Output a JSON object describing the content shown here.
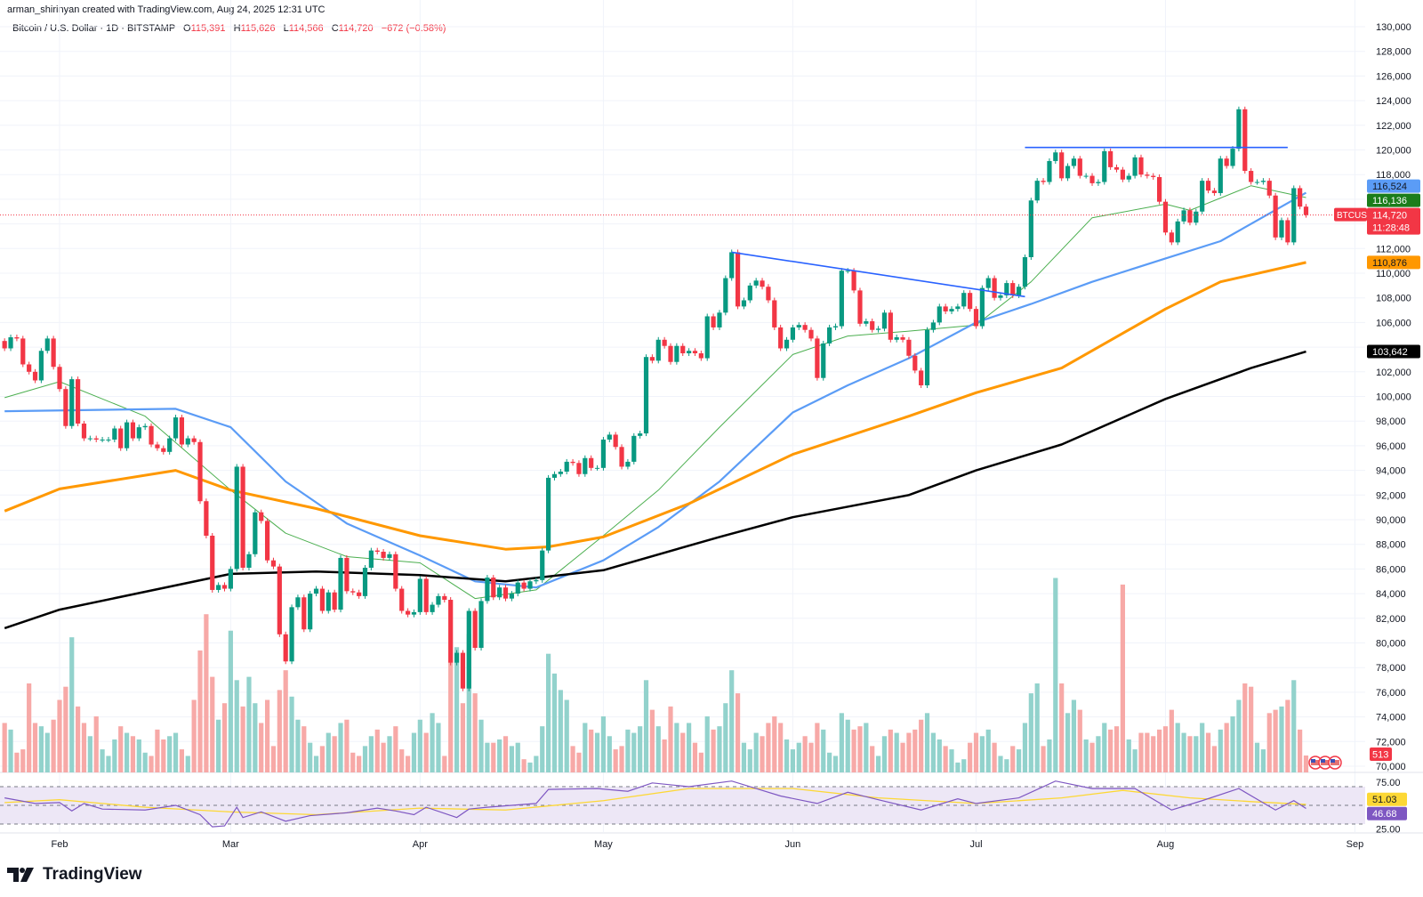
{
  "header": {
    "credit": "arman_shirinyan created with TradingView.com, Aug 24, 2025 12:31 UTC",
    "symbol": "Bitcoin / U.S. Dollar · 1D · BITSTAMP",
    "o_label": "O",
    "o": "115,391",
    "h_label": "H",
    "h": "115,626",
    "l_label": "L",
    "l": "114,566",
    "c_label": "C",
    "c": "114,720",
    "change": "−672 (−0.58%)"
  },
  "branding": {
    "logo_text": "TradingView"
  },
  "colors": {
    "up": "#089981",
    "down": "#f23645",
    "vol_up": "#92d2cc",
    "vol_down": "#f7a9a7",
    "ma_green": "#4caf50",
    "ma_blue": "#5b9cf6",
    "ma_orange": "#ff9800",
    "ma_black": "#000000",
    "trendline": "#2962ff",
    "rsi": "#7e57c2",
    "rsi_ma": "#fdd835",
    "rsi_band": "#ede7f6"
  },
  "chart_data": {
    "type": "candlestick",
    "title": "",
    "symbol_tag": "BTCUSD",
    "period": {
      "from": "2025-01-23",
      "to": "2025-08-24"
    },
    "first_open": 104500,
    "closes": [
      103900,
      104800,
      104700,
      102600,
      102000,
      101300,
      103700,
      104700,
      102400,
      100600,
      97600,
      101400,
      97800,
      96600,
      96600,
      96500,
      96500,
      96500,
      97400,
      95800,
      97900,
      96600,
      97500,
      97600,
      96100,
      95800,
      95500,
      96600,
      98300,
      96100,
      96600,
      96300,
      91500,
      88700,
      84300,
      84700,
      84400,
      86000,
      94300,
      86100,
      87200,
      90600,
      89900,
      86700,
      86200,
      80700,
      78500,
      82900,
      83700,
      81100,
      84000,
      84400,
      82600,
      84100,
      82700,
      86900,
      84200,
      84100,
      83800,
      86100,
      87500,
      87400,
      86900,
      87200,
      84400,
      82600,
      82300,
      82500,
      85200,
      82500,
      83100,
      83800,
      83500,
      78400,
      79200,
      76300,
      82600,
      79600,
      83400,
      85300,
      83700,
      84500,
      83600,
      84000,
      84900,
      84400,
      85000,
      85100,
      87500,
      93400,
      93700,
      93900,
      94700,
      94600,
      93700,
      95000,
      94200,
      94200,
      96500,
      96900,
      95900,
      94300,
      94700,
      96800,
      97000,
      103200,
      102900,
      104600,
      104100,
      102800,
      104100,
      103500,
      103700,
      103500,
      103100,
      106500,
      105600,
      106800,
      109600,
      111700,
      107300,
      107800,
      109000,
      109400,
      108900,
      107800,
      105600,
      103900,
      104600,
      105600,
      105800,
      105400,
      104700,
      101500,
      104300,
      105600,
      105700,
      110200,
      110200,
      108600,
      105900,
      106100,
      105400,
      105500,
      106800,
      104600,
      104800,
      104600,
      103300,
      102100,
      100900,
      105400,
      106000,
      107300,
      106900,
      107100,
      107300,
      108400,
      107100,
      105700,
      108800,
      109600,
      108000,
      108200,
      109200,
      108200,
      108900,
      111300,
      115900,
      117500,
      117400,
      119100,
      119800,
      117700,
      118700,
      119300,
      117900,
      117900,
      117300,
      117400,
      119900,
      118600,
      118400,
      117600,
      117900,
      119400,
      118000,
      117900,
      117800,
      115800,
      113300,
      112500,
      114200,
      115100,
      114100,
      115000,
      117500,
      116700,
      116500,
      119300,
      118700,
      120100,
      123300,
      118300,
      117400,
      117400,
      117500,
      116300,
      112900,
      114300,
      112500,
      116900,
      115400,
      114720
    ],
    "volume": [
      1500,
      1300,
      600,
      700,
      2700,
      1500,
      1400,
      1200,
      1600,
      2200,
      2600,
      4100,
      2000,
      1500,
      1100,
      1700,
      700,
      500,
      1000,
      1400,
      1200,
      1100,
      1000,
      600,
      500,
      1300,
      1000,
      1100,
      1200,
      700,
      500,
      2200,
      3700,
      4800,
      2900,
      1600,
      2100,
      4300,
      2800,
      2000,
      2900,
      2100,
      1500,
      2200,
      800,
      2500,
      3100,
      2300,
      1600,
      1400,
      900,
      500,
      800,
      1200,
      1100,
      1500,
      1600,
      600,
      500,
      800,
      1100,
      1300,
      900,
      1100,
      1400,
      700,
      500,
      1200,
      1600,
      1200,
      1800,
      1500,
      500,
      3400,
      3800,
      2100,
      4200,
      2400,
      1600,
      900,
      900,
      1000,
      1100,
      800,
      900,
      400,
      300,
      500,
      1400,
      3600,
      3000,
      2500,
      2200,
      800,
      600,
      1500,
      1300,
      1200,
      1700,
      1100,
      700,
      800,
      1300,
      1200,
      1400,
      2800,
      1900,
      1400,
      1000,
      2000,
      1500,
      1200,
      1500,
      900,
      600,
      1700,
      1300,
      1400,
      2100,
      3100,
      2400,
      900,
      700,
      1200,
      1100,
      1500,
      1700,
      1500,
      1000,
      700,
      900,
      1100,
      900,
      1500,
      1300,
      600,
      500,
      1800,
      1600,
      1300,
      1400,
      1500,
      800,
      500,
      1100,
      1300,
      1200,
      900,
      1200,
      1300,
      1600,
      1800,
      1200,
      1000,
      800,
      700,
      300,
      400,
      900,
      1200,
      1100,
      1300,
      900,
      500,
      400,
      800,
      700,
      1500,
      2400,
      2700,
      800,
      1000,
      5900,
      2700,
      1800,
      2200,
      1900,
      1000,
      900,
      1100,
      1500,
      1300,
      1400,
      5700,
      1000,
      700,
      1200,
      1200,
      1100,
      1300,
      1400,
      1900,
      1500,
      1200,
      1100,
      1100,
      1500,
      1200,
      800,
      1300,
      1500,
      1700,
      2200,
      2700,
      2600,
      900,
      700,
      1800,
      1900,
      2000,
      2200,
      2800,
      1300,
      513
    ],
    "moving_averages": [
      {
        "color_key": "ma_green",
        "width": 1,
        "last_label": "116,136",
        "points": [
          [
            "2025-01-23",
            99900
          ],
          [
            "2025-02-01",
            101200
          ],
          [
            "2025-02-15",
            98400
          ],
          [
            "2025-03-01",
            92400
          ],
          [
            "2025-03-10",
            88900
          ],
          [
            "2025-03-20",
            87000
          ],
          [
            "2025-04-01",
            86500
          ],
          [
            "2025-04-10",
            83600
          ],
          [
            "2025-04-20",
            84300
          ],
          [
            "2025-05-01",
            88700
          ],
          [
            "2025-05-10",
            92400
          ],
          [
            "2025-05-20",
            97500
          ],
          [
            "2025-06-01",
            103400
          ],
          [
            "2025-06-10",
            104900
          ],
          [
            "2025-06-20",
            105300
          ],
          [
            "2025-07-01",
            105800
          ],
          [
            "2025-07-10",
            109300
          ],
          [
            "2025-07-20",
            114500
          ],
          [
            "2025-08-01",
            115600
          ],
          [
            "2025-08-05",
            115100
          ],
          [
            "2025-08-15",
            117100
          ],
          [
            "2025-08-24",
            116136
          ]
        ]
      },
      {
        "color_key": "ma_blue",
        "width": 2.2,
        "last_label": "116,524",
        "points": [
          [
            "2025-01-23",
            98800
          ],
          [
            "2025-02-20",
            99000
          ],
          [
            "2025-03-01",
            97500
          ],
          [
            "2025-03-10",
            93100
          ],
          [
            "2025-03-20",
            89700
          ],
          [
            "2025-04-01",
            87100
          ],
          [
            "2025-04-10",
            85000
          ],
          [
            "2025-04-20",
            84500
          ],
          [
            "2025-05-01",
            86700
          ],
          [
            "2025-05-10",
            89400
          ],
          [
            "2025-05-20",
            93100
          ],
          [
            "2025-06-01",
            98700
          ],
          [
            "2025-06-10",
            100900
          ],
          [
            "2025-06-20",
            103100
          ],
          [
            "2025-07-01",
            106000
          ],
          [
            "2025-07-10",
            107500
          ],
          [
            "2025-07-20",
            109300
          ],
          [
            "2025-08-01",
            111200
          ],
          [
            "2025-08-10",
            112600
          ],
          [
            "2025-08-24",
            116524
          ]
        ]
      },
      {
        "color_key": "ma_orange",
        "width": 3,
        "last_label": "110,876",
        "points": [
          [
            "2025-01-23",
            90700
          ],
          [
            "2025-02-01",
            92500
          ],
          [
            "2025-02-20",
            94000
          ],
          [
            "2025-03-01",
            92400
          ],
          [
            "2025-03-15",
            90900
          ],
          [
            "2025-04-01",
            88700
          ],
          [
            "2025-04-15",
            87600
          ],
          [
            "2025-04-22",
            87800
          ],
          [
            "2025-05-01",
            88600
          ],
          [
            "2025-05-15",
            91300
          ],
          [
            "2025-06-01",
            95300
          ],
          [
            "2025-06-20",
            98400
          ],
          [
            "2025-07-01",
            100300
          ],
          [
            "2025-07-15",
            102300
          ],
          [
            "2025-08-01",
            107100
          ],
          [
            "2025-08-10",
            109300
          ],
          [
            "2025-08-24",
            110876
          ]
        ]
      },
      {
        "color_key": "ma_black",
        "width": 2.5,
        "last_label": "103,642",
        "points": [
          [
            "2025-01-23",
            81200
          ],
          [
            "2025-02-01",
            82700
          ],
          [
            "2025-03-01",
            85600
          ],
          [
            "2025-03-15",
            85800
          ],
          [
            "2025-04-01",
            85500
          ],
          [
            "2025-04-15",
            85000
          ],
          [
            "2025-05-01",
            85900
          ],
          [
            "2025-05-20",
            88600
          ],
          [
            "2025-06-01",
            90200
          ],
          [
            "2025-06-20",
            92000
          ],
          [
            "2025-07-01",
            94000
          ],
          [
            "2025-07-15",
            96100
          ],
          [
            "2025-08-01",
            99800
          ],
          [
            "2025-08-15",
            102300
          ],
          [
            "2025-08-24",
            103642
          ]
        ]
      }
    ],
    "trendlines": [
      {
        "from": [
          "2025-05-22",
          111700
        ],
        "to": [
          "2025-07-09",
          108100
        ]
      },
      {
        "from": [
          "2025-07-09",
          120200
        ],
        "to": [
          "2025-08-21",
          120200
        ]
      }
    ],
    "last_price": "114,720",
    "countdown": "11:28:48",
    "last_volume": "513",
    "y_ticks": [
      "70,000",
      "72,000",
      "74,000",
      "76,000",
      "78,000",
      "80,000",
      "82,000",
      "84,000",
      "86,000",
      "88,000",
      "90,000",
      "92,000",
      "94,000",
      "96,000",
      "98,000",
      "100,000",
      "102,000",
      "104,000",
      "106,000",
      "108,000",
      "110,000",
      "112,000",
      "114,000",
      "116,000",
      "118,000",
      "120,000",
      "122,000",
      "124,000",
      "126,000",
      "128,000",
      "130,000"
    ],
    "ylim": [
      70000,
      130000
    ],
    "x_ticks": [
      [
        "2025-02-01",
        "Feb"
      ],
      [
        "2025-03-01",
        "Mar"
      ],
      [
        "2025-04-01",
        "Apr"
      ],
      [
        "2025-05-01",
        "May"
      ],
      [
        "2025-06-01",
        "Jun"
      ],
      [
        "2025-07-01",
        "Jul"
      ],
      [
        "2025-08-01",
        "Aug"
      ],
      [
        "2025-09-01",
        "Sep"
      ]
    ],
    "rsi": {
      "y_ticks": [
        "75.00",
        "25.00"
      ],
      "levels": [
        70,
        50,
        30
      ],
      "last_rsi": "46.68",
      "last_ma": "51.03",
      "points": [
        [
          "2025-01-23",
          58
        ],
        [
          "2025-01-28",
          52
        ],
        [
          "2025-02-01",
          53
        ],
        [
          "2025-02-03",
          44
        ],
        [
          "2025-02-05",
          52
        ],
        [
          "2025-02-08",
          46
        ],
        [
          "2025-02-15",
          45
        ],
        [
          "2025-02-20",
          50
        ],
        [
          "2025-02-24",
          40
        ],
        [
          "2025-02-26",
          27
        ],
        [
          "2025-02-28",
          28
        ],
        [
          "2025-03-02",
          48
        ],
        [
          "2025-03-03",
          37
        ],
        [
          "2025-03-06",
          43
        ],
        [
          "2025-03-10",
          33
        ],
        [
          "2025-03-14",
          39
        ],
        [
          "2025-03-20",
          42
        ],
        [
          "2025-03-25",
          47
        ],
        [
          "2025-03-28",
          44
        ],
        [
          "2025-03-31",
          40
        ],
        [
          "2025-04-02",
          48
        ],
        [
          "2025-04-07",
          37
        ],
        [
          "2025-04-09",
          46
        ],
        [
          "2025-04-12",
          48
        ],
        [
          "2025-04-20",
          52
        ],
        [
          "2025-04-22",
          67
        ],
        [
          "2025-04-30",
          68
        ],
        [
          "2025-05-05",
          65
        ],
        [
          "2025-05-09",
          74
        ],
        [
          "2025-05-15",
          70
        ],
        [
          "2025-05-22",
          76
        ],
        [
          "2025-05-30",
          60
        ],
        [
          "2025-06-05",
          52
        ],
        [
          "2025-06-10",
          64
        ],
        [
          "2025-06-15",
          56
        ],
        [
          "2025-06-22",
          45
        ],
        [
          "2025-06-28",
          57
        ],
        [
          "2025-07-01",
          52
        ],
        [
          "2025-07-08",
          58
        ],
        [
          "2025-07-14",
          76
        ],
        [
          "2025-07-20",
          68
        ],
        [
          "2025-07-27",
          68
        ],
        [
          "2025-08-02",
          45
        ],
        [
          "2025-08-07",
          55
        ],
        [
          "2025-08-13",
          68
        ],
        [
          "2025-08-19",
          45
        ],
        [
          "2025-08-22",
          55
        ],
        [
          "2025-08-24",
          46.68
        ]
      ],
      "ma_points": [
        [
          "2025-01-23",
          53
        ],
        [
          "2025-02-01",
          56
        ],
        [
          "2025-02-15",
          48
        ],
        [
          "2025-03-01",
          43
        ],
        [
          "2025-03-15",
          40
        ],
        [
          "2025-04-01",
          47
        ],
        [
          "2025-04-15",
          45
        ],
        [
          "2025-05-01",
          55
        ],
        [
          "2025-05-15",
          68
        ],
        [
          "2025-06-01",
          68
        ],
        [
          "2025-06-15",
          58
        ],
        [
          "2025-07-01",
          52
        ],
        [
          "2025-07-15",
          58
        ],
        [
          "2025-07-25",
          66
        ],
        [
          "2025-08-05",
          58
        ],
        [
          "2025-08-15",
          54
        ],
        [
          "2025-08-24",
          51.03
        ]
      ]
    },
    "events": [
      "us-flag-icon",
      "us-flag-icon",
      "us-flag-icon"
    ]
  }
}
